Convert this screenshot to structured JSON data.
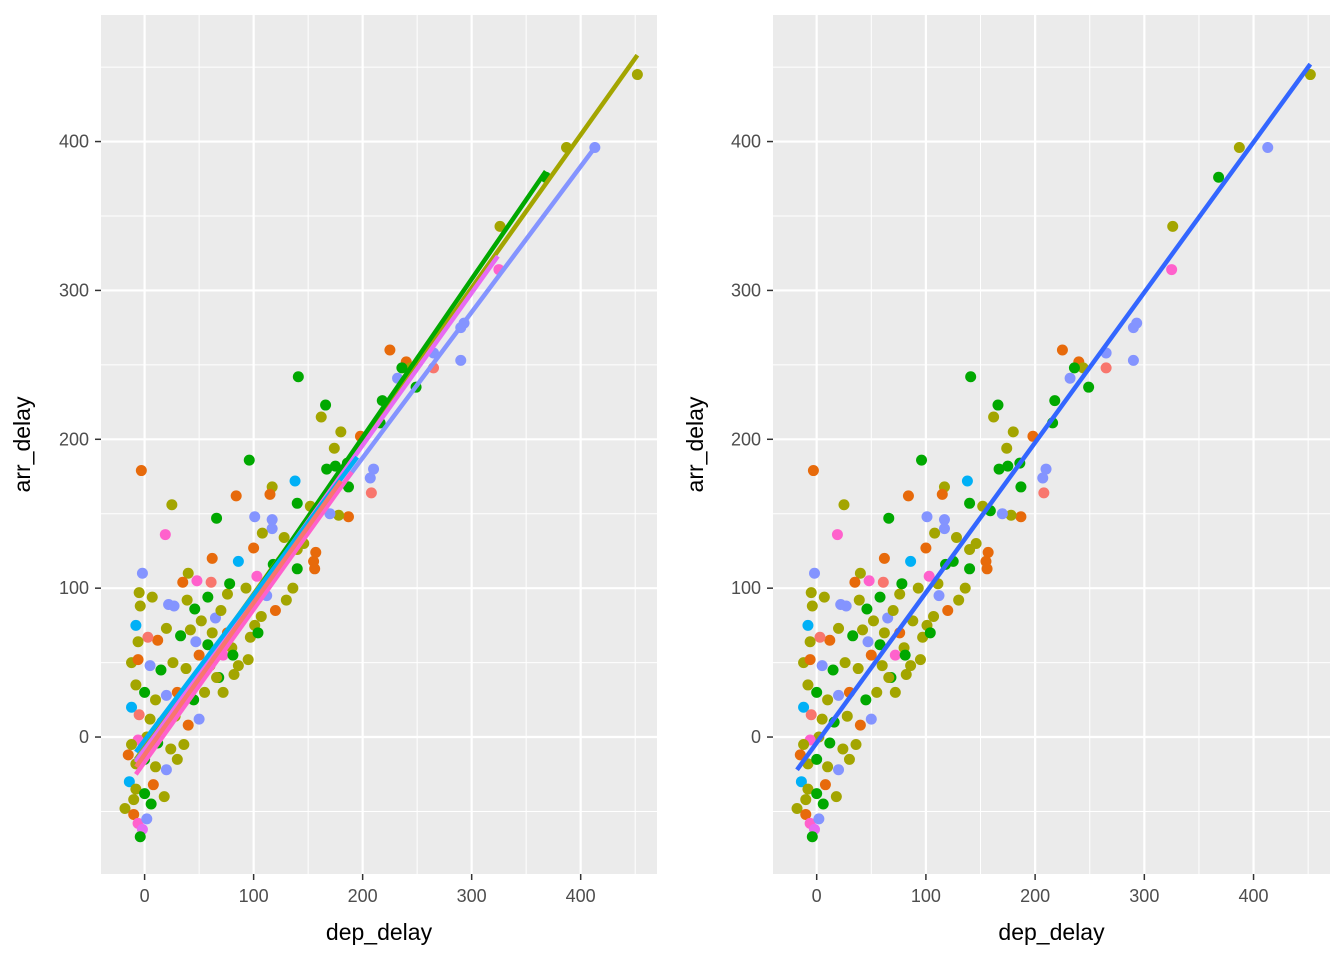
{
  "palette": [
    "#F8766D",
    "#C49A00",
    "#53B400",
    "#00C094",
    "#00B6EB",
    "#A58AFF",
    "#FB61D7",
    "#E76BF3",
    "#D89000",
    "#7CAE00",
    "#00BA38",
    "#619CFF",
    "#FF61C3",
    "#00BFC4",
    "#8494FF"
  ],
  "chart_data": [
    {
      "type": "scatter",
      "xlabel": "dep_delay",
      "ylabel": "arr_delay",
      "xlim": [
        -40,
        470
      ],
      "ylim": [
        -92,
        485
      ],
      "x_ticks": [
        0,
        100,
        200,
        300,
        400
      ],
      "y_ticks": [
        0,
        100,
        200,
        300,
        400
      ],
      "x_tick_labels": [
        "0",
        "100",
        "200",
        "300",
        "400"
      ],
      "y_tick_labels": [
        "0",
        "100",
        "200",
        "300",
        "400"
      ],
      "grid": true,
      "legend": "none",
      "background": "#EBEBEB",
      "points": [
        {
          "x": 452,
          "y": 445,
          "c": "#A3A500"
        },
        {
          "x": 387,
          "y": 396,
          "c": "#A3A500"
        },
        {
          "x": 413,
          "y": 396,
          "c": "#8494FF"
        },
        {
          "x": 326,
          "y": 343,
          "c": "#A3A500"
        },
        {
          "x": 325,
          "y": 314,
          "c": "#FF61CC"
        },
        {
          "x": 368,
          "y": 376,
          "c": "#00A800"
        },
        {
          "x": 293,
          "y": 278,
          "c": "#8494FF"
        },
        {
          "x": 290,
          "y": 275,
          "c": "#8494FF"
        },
        {
          "x": 290,
          "y": 253,
          "c": "#8494FF"
        },
        {
          "x": 225,
          "y": 260,
          "c": "#E76A0B"
        },
        {
          "x": 240,
          "y": 252,
          "c": "#E76A0B"
        },
        {
          "x": 244,
          "y": 248,
          "c": "#A3A500"
        },
        {
          "x": 232,
          "y": 241,
          "c": "#8494FF"
        },
        {
          "x": 265,
          "y": 258,
          "c": "#8494FF"
        },
        {
          "x": 265,
          "y": 248,
          "c": "#F8766D"
        },
        {
          "x": 249,
          "y": 235,
          "c": "#00A800"
        },
        {
          "x": 236,
          "y": 248,
          "c": "#00A800"
        },
        {
          "x": 141,
          "y": 242,
          "c": "#00A800"
        },
        {
          "x": 166,
          "y": 223,
          "c": "#00A800"
        },
        {
          "x": 162,
          "y": 215,
          "c": "#A3A500"
        },
        {
          "x": 218,
          "y": 226,
          "c": "#00A800"
        },
        {
          "x": 216,
          "y": 211,
          "c": "#00A800"
        },
        {
          "x": 180,
          "y": 205,
          "c": "#A3A500"
        },
        {
          "x": 198,
          "y": 202,
          "c": "#E76A0B"
        },
        {
          "x": 174,
          "y": 194,
          "c": "#A3A500"
        },
        {
          "x": 96,
          "y": 186,
          "c": "#00A800"
        },
        {
          "x": 167,
          "y": 180,
          "c": "#00A800"
        },
        {
          "x": 175,
          "y": 182,
          "c": "#00A800"
        },
        {
          "x": 186,
          "y": 184,
          "c": "#00A800"
        },
        {
          "x": 210,
          "y": 180,
          "c": "#8494FF"
        },
        {
          "x": 207,
          "y": 174,
          "c": "#8494FF"
        },
        {
          "x": 208,
          "y": 164,
          "c": "#F8766D"
        },
        {
          "x": -3,
          "y": 179,
          "c": "#E76A0B"
        },
        {
          "x": 138,
          "y": 172,
          "c": "#00B0F6"
        },
        {
          "x": 117,
          "y": 168,
          "c": "#A3A500"
        },
        {
          "x": 115,
          "y": 163,
          "c": "#E76A0B"
        },
        {
          "x": 84,
          "y": 162,
          "c": "#E76A0B"
        },
        {
          "x": 25,
          "y": 156,
          "c": "#A3A500"
        },
        {
          "x": 140,
          "y": 157,
          "c": "#00A800"
        },
        {
          "x": 152,
          "y": 155,
          "c": "#A3A500"
        },
        {
          "x": 159,
          "y": 152,
          "c": "#00A800"
        },
        {
          "x": 187,
          "y": 168,
          "c": "#00A800"
        },
        {
          "x": 187,
          "y": 148,
          "c": "#E76A0B"
        },
        {
          "x": 178,
          "y": 149,
          "c": "#A3A500"
        },
        {
          "x": 101,
          "y": 148,
          "c": "#8494FF"
        },
        {
          "x": 117,
          "y": 146,
          "c": "#8494FF"
        },
        {
          "x": 117,
          "y": 140,
          "c": "#8494FF"
        },
        {
          "x": 66,
          "y": 147,
          "c": "#00A800"
        },
        {
          "x": 19,
          "y": 136,
          "c": "#FF61CC"
        },
        {
          "x": 108,
          "y": 137,
          "c": "#A3A500"
        },
        {
          "x": 128,
          "y": 134,
          "c": "#A3A500"
        },
        {
          "x": 140,
          "y": 126,
          "c": "#A3A500"
        },
        {
          "x": 100,
          "y": 127,
          "c": "#E76A0B"
        },
        {
          "x": 86,
          "y": 118,
          "c": "#00B0F6"
        },
        {
          "x": 62,
          "y": 120,
          "c": "#E76A0B"
        },
        {
          "x": 157,
          "y": 124,
          "c": "#E76A0B"
        },
        {
          "x": 155,
          "y": 118,
          "c": "#E76A0B"
        },
        {
          "x": 156,
          "y": 113,
          "c": "#E76A0B"
        },
        {
          "x": 140,
          "y": 113,
          "c": "#00A800"
        },
        {
          "x": 118,
          "y": 116,
          "c": "#00A800"
        },
        {
          "x": 136,
          "y": 100,
          "c": "#A3A500"
        },
        {
          "x": 111,
          "y": 103,
          "c": "#A3A500"
        },
        {
          "x": 103,
          "y": 108,
          "c": "#FF61CC"
        },
        {
          "x": 93,
          "y": 100,
          "c": "#A3A500"
        },
        {
          "x": 130,
          "y": 92,
          "c": "#A3A500"
        },
        {
          "x": 107,
          "y": 81,
          "c": "#A3A500"
        },
        {
          "x": 101,
          "y": 75,
          "c": "#A3A500"
        },
        {
          "x": 97,
          "y": 67,
          "c": "#A3A500"
        },
        {
          "x": 104,
          "y": 70,
          "c": "#00A800"
        },
        {
          "x": 95,
          "y": 52,
          "c": "#A3A500"
        },
        {
          "x": 76,
          "y": 96,
          "c": "#A3A500"
        },
        {
          "x": 78,
          "y": 103,
          "c": "#00A800"
        },
        {
          "x": 61,
          "y": 104,
          "c": "#F8766D"
        },
        {
          "x": 48,
          "y": 105,
          "c": "#FF61CC"
        },
        {
          "x": 40,
          "y": 110,
          "c": "#A3A500"
        },
        {
          "x": 35,
          "y": 104,
          "c": "#E76A0B"
        },
        {
          "x": 58,
          "y": 94,
          "c": "#00A800"
        },
        {
          "x": 39,
          "y": 92,
          "c": "#A3A500"
        },
        {
          "x": 46,
          "y": 86,
          "c": "#00A800"
        },
        {
          "x": 27,
          "y": 88,
          "c": "#8494FF"
        },
        {
          "x": 22,
          "y": 89,
          "c": "#8494FF"
        },
        {
          "x": 7,
          "y": 94,
          "c": "#A3A500"
        },
        {
          "x": -5,
          "y": 97,
          "c": "#A3A500"
        },
        {
          "x": -4,
          "y": 88,
          "c": "#A3A500"
        },
        {
          "x": -2,
          "y": 110,
          "c": "#8494FF"
        },
        {
          "x": 65,
          "y": 80,
          "c": "#8494FF"
        },
        {
          "x": 70,
          "y": 85,
          "c": "#A3A500"
        },
        {
          "x": 52,
          "y": 78,
          "c": "#A3A500"
        },
        {
          "x": 42,
          "y": 72,
          "c": "#A3A500"
        },
        {
          "x": 33,
          "y": 68,
          "c": "#00A800"
        },
        {
          "x": 20,
          "y": 73,
          "c": "#A3A500"
        },
        {
          "x": 12,
          "y": 65,
          "c": "#E76A0B"
        },
        {
          "x": 3,
          "y": 67,
          "c": "#F8766D"
        },
        {
          "x": -8,
          "y": 75,
          "c": "#00B0F6"
        },
        {
          "x": -6,
          "y": 64,
          "c": "#A3A500"
        },
        {
          "x": -12,
          "y": 50,
          "c": "#A3A500"
        },
        {
          "x": -6,
          "y": 52,
          "c": "#E76A0B"
        },
        {
          "x": 5,
          "y": 48,
          "c": "#8494FF"
        },
        {
          "x": 15,
          "y": 45,
          "c": "#00A800"
        },
        {
          "x": 26,
          "y": 50,
          "c": "#A3A500"
        },
        {
          "x": 38,
          "y": 46,
          "c": "#A3A500"
        },
        {
          "x": 50,
          "y": 55,
          "c": "#E76A0B"
        },
        {
          "x": 60,
          "y": 48,
          "c": "#A3A500"
        },
        {
          "x": 68,
          "y": 40,
          "c": "#00A800"
        },
        {
          "x": 72,
          "y": 55,
          "c": "#FF61CC"
        },
        {
          "x": 80,
          "y": 60,
          "c": "#A3A500"
        },
        {
          "x": 86,
          "y": 48,
          "c": "#A3A500"
        },
        {
          "x": 55,
          "y": 30,
          "c": "#A3A500"
        },
        {
          "x": 45,
          "y": 25,
          "c": "#00A800"
        },
        {
          "x": 30,
          "y": 30,
          "c": "#E76A0B"
        },
        {
          "x": 20,
          "y": 28,
          "c": "#8494FF"
        },
        {
          "x": 10,
          "y": 25,
          "c": "#A3A500"
        },
        {
          "x": 0,
          "y": 30,
          "c": "#00A800"
        },
        {
          "x": -8,
          "y": 35,
          "c": "#A3A500"
        },
        {
          "x": -12,
          "y": 20,
          "c": "#00B0F6"
        },
        {
          "x": -5,
          "y": 15,
          "c": "#F8766D"
        },
        {
          "x": 5,
          "y": 12,
          "c": "#A3A500"
        },
        {
          "x": 16,
          "y": 10,
          "c": "#00A800"
        },
        {
          "x": 28,
          "y": 14,
          "c": "#A3A500"
        },
        {
          "x": 40,
          "y": 8,
          "c": "#E76A0B"
        },
        {
          "x": 50,
          "y": 12,
          "c": "#8494FF"
        },
        {
          "x": 36,
          "y": -5,
          "c": "#A3A500"
        },
        {
          "x": 24,
          "y": -8,
          "c": "#A3A500"
        },
        {
          "x": 12,
          "y": -4,
          "c": "#00A800"
        },
        {
          "x": 2,
          "y": 0,
          "c": "#A3A500"
        },
        {
          "x": -6,
          "y": -2,
          "c": "#FF61CC"
        },
        {
          "x": -12,
          "y": -5,
          "c": "#A3A500"
        },
        {
          "x": -15,
          "y": -12,
          "c": "#E76A0B"
        },
        {
          "x": -8,
          "y": -18,
          "c": "#A3A500"
        },
        {
          "x": 0,
          "y": -15,
          "c": "#00A800"
        },
        {
          "x": 10,
          "y": -20,
          "c": "#A3A500"
        },
        {
          "x": 20,
          "y": -22,
          "c": "#8494FF"
        },
        {
          "x": 30,
          "y": -15,
          "c": "#A3A500"
        },
        {
          "x": -14,
          "y": -30,
          "c": "#00B0F6"
        },
        {
          "x": -8,
          "y": -35,
          "c": "#A3A500"
        },
        {
          "x": 0,
          "y": -38,
          "c": "#00A800"
        },
        {
          "x": 8,
          "y": -32,
          "c": "#E76A0B"
        },
        {
          "x": 18,
          "y": -40,
          "c": "#A3A500"
        },
        {
          "x": -18,
          "y": -48,
          "c": "#A3A500"
        },
        {
          "x": -10,
          "y": -52,
          "c": "#E76A0B"
        },
        {
          "x": -6,
          "y": -58,
          "c": "#FF61CC"
        },
        {
          "x": -2,
          "y": -62,
          "c": "#E76BF3"
        },
        {
          "x": 2,
          "y": -55,
          "c": "#8494FF"
        },
        {
          "x": -4,
          "y": -67,
          "c": "#00A800"
        },
        {
          "x": -10,
          "y": -42,
          "c": "#A3A500"
        },
        {
          "x": 6,
          "y": -45,
          "c": "#00A800"
        },
        {
          "x": 58,
          "y": 62,
          "c": "#00A800"
        },
        {
          "x": 62,
          "y": 70,
          "c": "#A3A500"
        },
        {
          "x": 47,
          "y": 64,
          "c": "#8494FF"
        },
        {
          "x": 76,
          "y": 70,
          "c": "#E76A0B"
        },
        {
          "x": 88,
          "y": 78,
          "c": "#A3A500"
        },
        {
          "x": 125,
          "y": 118,
          "c": "#00A800"
        },
        {
          "x": 146,
          "y": 130,
          "c": "#A3A500"
        },
        {
          "x": 170,
          "y": 150,
          "c": "#8494FF"
        },
        {
          "x": 120,
          "y": 85,
          "c": "#E76A0B"
        },
        {
          "x": 81,
          "y": 55,
          "c": "#00A800"
        },
        {
          "x": 112,
          "y": 95,
          "c": "#8494FF"
        },
        {
          "x": 66,
          "y": 40,
          "c": "#A3A500"
        },
        {
          "x": 72,
          "y": 30,
          "c": "#A3A500"
        },
        {
          "x": 82,
          "y": 42,
          "c": "#A3A500"
        }
      ],
      "lines": [
        {
          "color": "#A3A500",
          "x": [
            -8,
            452
          ],
          "y": [
            -15,
            458
          ]
        },
        {
          "color": "#00A800",
          "x": [
            -8,
            368
          ],
          "y": [
            -20,
            380
          ]
        },
        {
          "color": "#8494FF",
          "x": [
            -8,
            413
          ],
          "y": [
            -16,
            396
          ]
        },
        {
          "color": "#E76BF3",
          "x": [
            -8,
            324
          ],
          "y": [
            -17,
            323
          ]
        },
        {
          "color": "#00B0F6",
          "x": [
            -8,
            195
          ],
          "y": [
            -10,
            188
          ]
        },
        {
          "color": "#FF61CC",
          "x": [
            -8,
            190
          ],
          "y": [
            -25,
            178
          ]
        },
        {
          "color": "#F8766D",
          "x": [
            -8,
            180
          ],
          "y": [
            -20,
            172
          ]
        }
      ]
    },
    {
      "type": "scatter",
      "xlabel": "dep_delay",
      "ylabel": "arr_delay",
      "xlim": [
        -40,
        470
      ],
      "ylim": [
        -92,
        485
      ],
      "x_ticks": [
        0,
        100,
        200,
        300,
        400
      ],
      "y_ticks": [
        0,
        100,
        200,
        300,
        400
      ],
      "x_tick_labels": [
        "0",
        "100",
        "200",
        "300",
        "400"
      ],
      "y_tick_labels": [
        "0",
        "100",
        "200",
        "300",
        "400"
      ],
      "grid": true,
      "legend": "none",
      "background": "#EBEBEB",
      "points_same_as_panel": 0,
      "lines": [
        {
          "color": "#3366FF",
          "x": [
            -18,
            452
          ],
          "y": [
            -22,
            452
          ]
        }
      ]
    }
  ]
}
